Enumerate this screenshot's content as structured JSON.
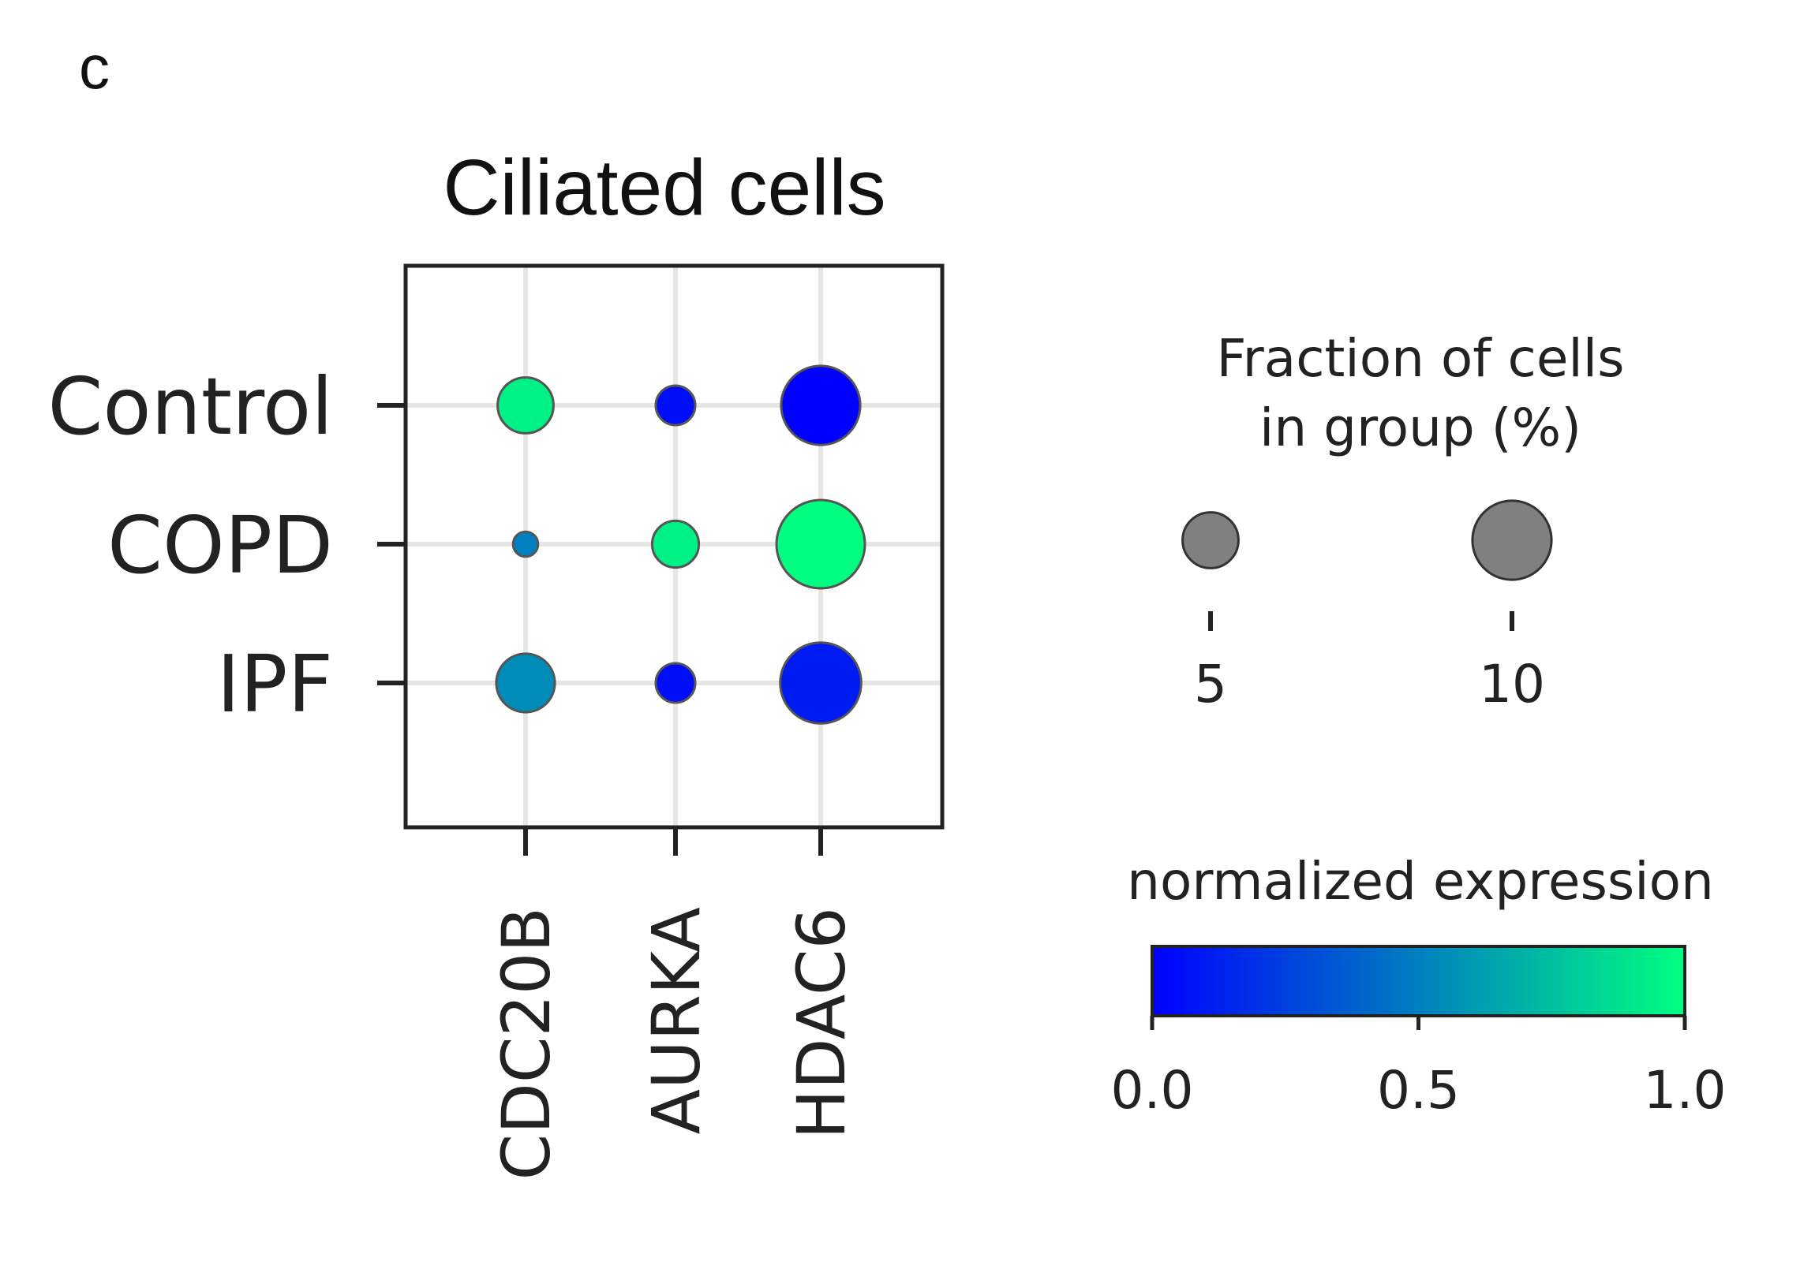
{
  "panel_label": "c",
  "chart_data": {
    "type": "dotplot",
    "title": "Ciliated cells",
    "rows": [
      "Control",
      "COPD",
      "IPF"
    ],
    "columns": [
      "CDC20B",
      "AURKA",
      "HDAC6"
    ],
    "fraction_percent": [
      [
        5,
        2.5,
        10
      ],
      [
        1,
        3.5,
        12.5
      ],
      [
        5.5,
        2.5,
        10.5
      ]
    ],
    "normalized_expression": [
      [
        0.95,
        0.05,
        0.0
      ],
      [
        0.5,
        0.95,
        1.0
      ],
      [
        0.55,
        0.05,
        0.1
      ]
    ],
    "size_legend": {
      "title_line1": "Fraction of cells",
      "title_line2": "in group (%)",
      "values": [
        5,
        10
      ],
      "labels": [
        "5",
        "10"
      ]
    },
    "color_legend": {
      "title": "normalized expression",
      "range": [
        0.0,
        1.0
      ],
      "ticks": [
        0.0,
        0.5,
        1.0
      ],
      "tick_labels": [
        "0.0",
        "0.5",
        "1.0"
      ],
      "colormap": [
        "#0000ff",
        "#00ff80"
      ]
    },
    "grid": true
  }
}
